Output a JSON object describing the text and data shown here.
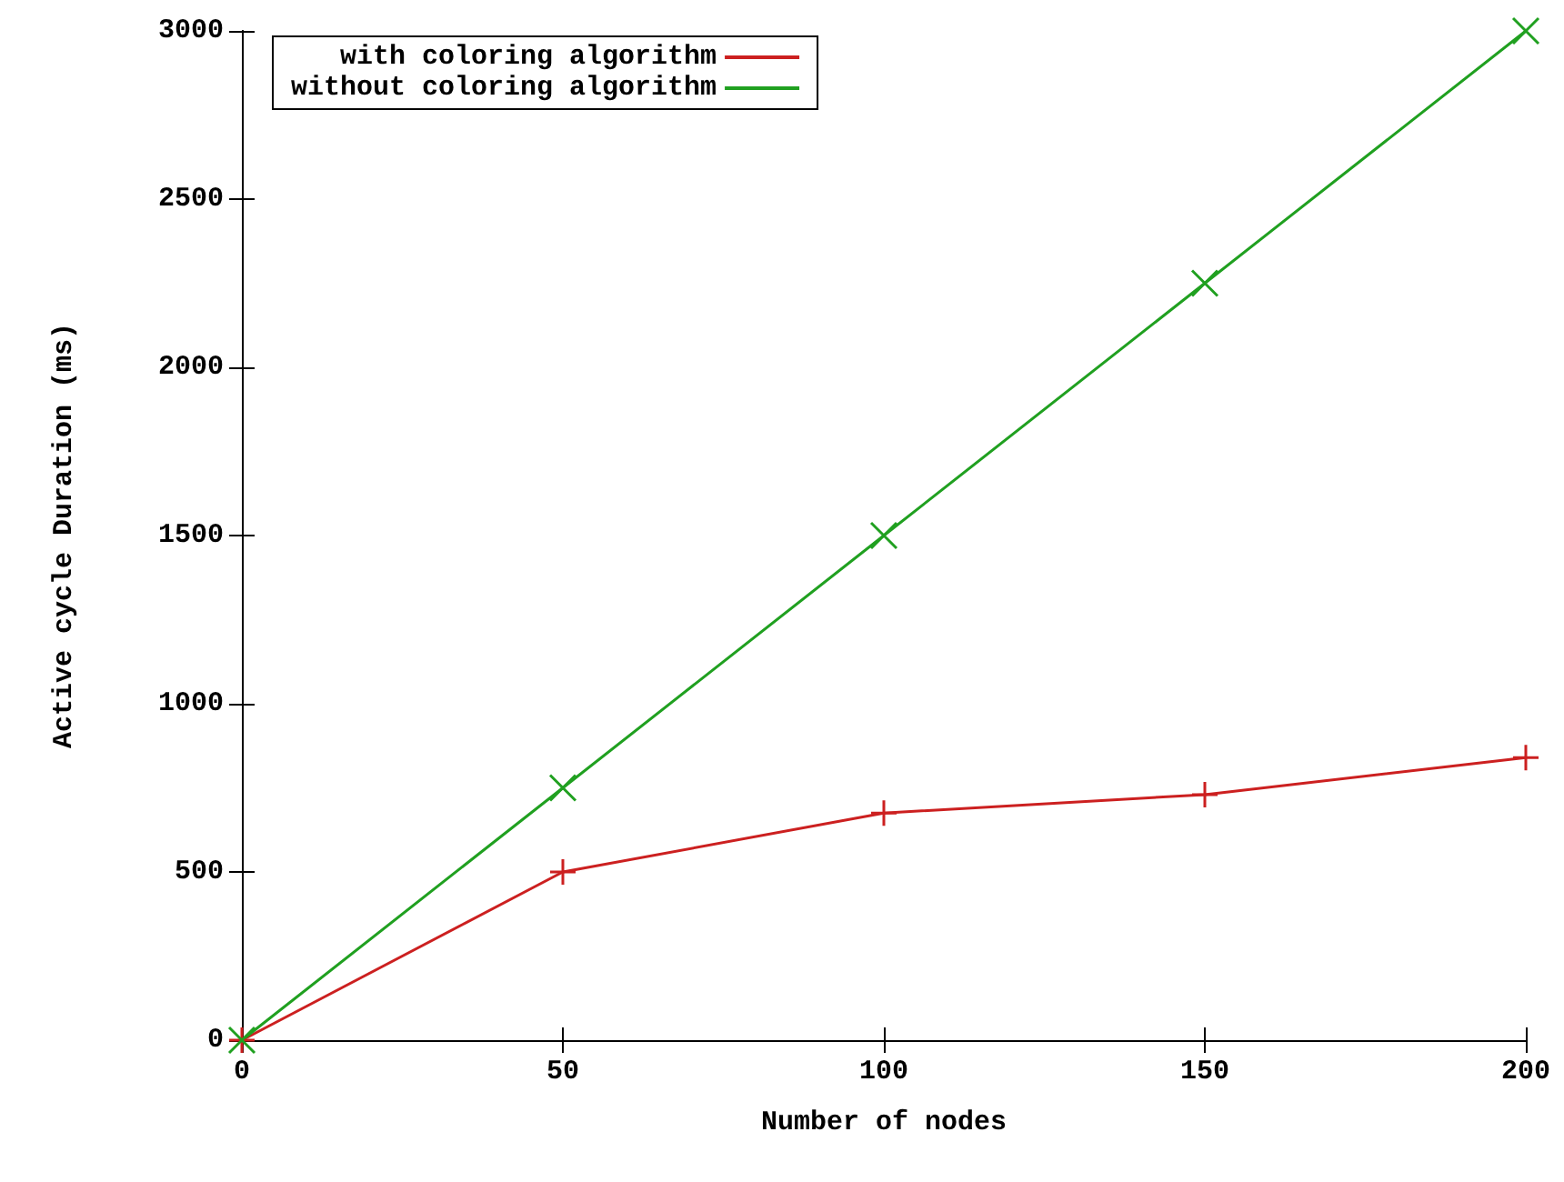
{
  "chart_data": {
    "type": "line",
    "xlabel": "Number of nodes",
    "ylabel": "Active cycle Duration (ms)",
    "x": [
      0,
      50,
      100,
      150,
      200
    ],
    "series": [
      {
        "name": "with coloring algorithm",
        "color": "#cc2020",
        "marker": "plus",
        "values": [
          0,
          500,
          675,
          730,
          840
        ]
      },
      {
        "name": "without coloring algorithm",
        "color": "#20a020",
        "marker": "cross",
        "values": [
          0,
          750,
          1500,
          2250,
          3000
        ]
      }
    ],
    "xlim": [
      0,
      200
    ],
    "xticks": [
      0,
      50,
      100,
      150,
      200
    ],
    "ylim": [
      0,
      3000
    ],
    "yticks": [
      0,
      500,
      1000,
      1500,
      2000,
      2500,
      3000
    ],
    "grid": false,
    "legend": "top left",
    "line_style": "solid"
  }
}
